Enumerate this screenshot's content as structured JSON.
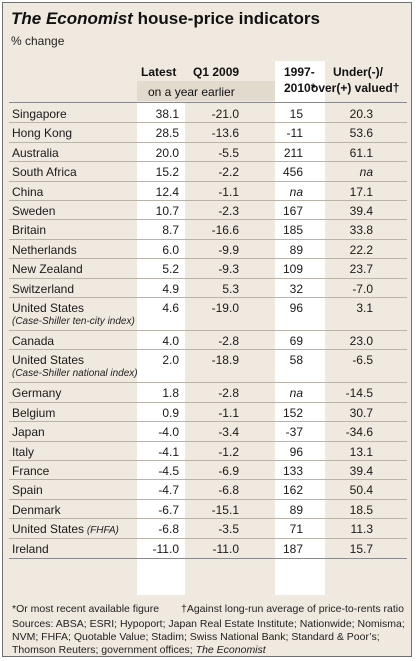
{
  "header": {
    "brand": "The Economist",
    "title_rest": "house-price indicators",
    "subtitle": "% change"
  },
  "columns": {
    "latest": "Latest",
    "q1": "Q1 2009",
    "band_label": "on a year earlier",
    "since_line1": "1997-",
    "since_line2": "2010*",
    "valued_line1": "Under(-)/",
    "valued_line2": "over(+) valued†"
  },
  "footnotes": {
    "star": "*Or most recent available figure",
    "dagger": "†Against long-run average of price-to-rents ratio",
    "sources_1": "Sources: ABSA; ESRI; Hypoport; Japan Real Estate Institute; Nationwide; Nomisma;",
    "sources_2": "NVM; FHFA; Quotable Value; Stadim; Swiss National Bank; Standard & Poor’s;",
    "sources_3_start": "Thomson Reuters; government offices; ",
    "sources_3_brand": "The Economist"
  },
  "colors": {
    "background": "#efe9df",
    "band": "#e2dacd",
    "column_highlight": "#ffffff"
  },
  "chart_data": {
    "type": "table",
    "title": "The Economist house-price indicators",
    "subtitle": "% change",
    "columns": [
      "Latest",
      "Q1 2009",
      "1997-2010*",
      "Under(-)/over(+) valued†"
    ],
    "rows": [
      {
        "name": "Singapore",
        "latest": "38.1",
        "q1": "-21.0",
        "since": "15",
        "valued": "20.3"
      },
      {
        "name": "Hong Kong",
        "latest": "28.5",
        "q1": "-13.6",
        "since": "-11",
        "valued": "53.6"
      },
      {
        "name": "Australia",
        "latest": "20.0",
        "q1": "-5.5",
        "since": "211",
        "valued": "61.1"
      },
      {
        "name": "South Africa",
        "latest": "15.2",
        "q1": "-2.2",
        "since": "456",
        "valued": "na"
      },
      {
        "name": "China",
        "latest": "12.4",
        "q1": "-1.1",
        "since": "na",
        "valued": "17.1"
      },
      {
        "name": "Sweden",
        "latest": "10.7",
        "q1": "-2.3",
        "since": "167",
        "valued": "39.4"
      },
      {
        "name": "Britain",
        "latest": "8.7",
        "q1": "-16.6",
        "since": "185",
        "valued": "33.8"
      },
      {
        "name": "Netherlands",
        "latest": "6.0",
        "q1": "-9.9",
        "since": "89",
        "valued": "22.2"
      },
      {
        "name": "New Zealand",
        "latest": "5.2",
        "q1": "-9.3",
        "since": "109",
        "valued": "23.7"
      },
      {
        "name": "Switzerland",
        "latest": "4.9",
        "q1": "5.3",
        "since": "32",
        "valued": "-7.0"
      },
      {
        "name": "United States",
        "sub": "(Case-Shiller ten-city index)",
        "latest": "4.6",
        "q1": "-19.0",
        "since": "96",
        "valued": "3.1"
      },
      {
        "name": "Canada",
        "latest": "4.0",
        "q1": "-2.8",
        "since": "69",
        "valued": "23.0"
      },
      {
        "name": "United States",
        "sub": "(Case-Shiller national index)",
        "latest": "2.0",
        "q1": "-18.9",
        "since": "58",
        "valued": "-6.5"
      },
      {
        "name": "Germany",
        "latest": "1.8",
        "q1": "-2.8",
        "since": "na",
        "valued": "-14.5"
      },
      {
        "name": "Belgium",
        "latest": "0.9",
        "q1": "-1.1",
        "since": "152",
        "valued": "30.7"
      },
      {
        "name": "Japan",
        "latest": "-4.0",
        "q1": "-3.4",
        "since": "-37",
        "valued": "-34.6"
      },
      {
        "name": "Italy",
        "latest": "-4.1",
        "q1": "-1.2",
        "since": "96",
        "valued": "13.1"
      },
      {
        "name": "France",
        "latest": "-4.5",
        "q1": "-6.9",
        "since": "133",
        "valued": "39.4"
      },
      {
        "name": "Spain",
        "latest": "-4.7",
        "q1": "-6.8",
        "since": "162",
        "valued": "50.4"
      },
      {
        "name": "Denmark",
        "latest": "-6.7",
        "q1": "-15.1",
        "since": "89",
        "valued": "18.5"
      },
      {
        "name": "United States",
        "inline_sub": "(FHFA)",
        "latest": "-6.8",
        "q1": "-3.5",
        "since": "71",
        "valued": "11.3"
      },
      {
        "name": "Ireland",
        "latest": "-11.0",
        "q1": "-11.0",
        "since": "187",
        "valued": "15.7"
      }
    ]
  }
}
